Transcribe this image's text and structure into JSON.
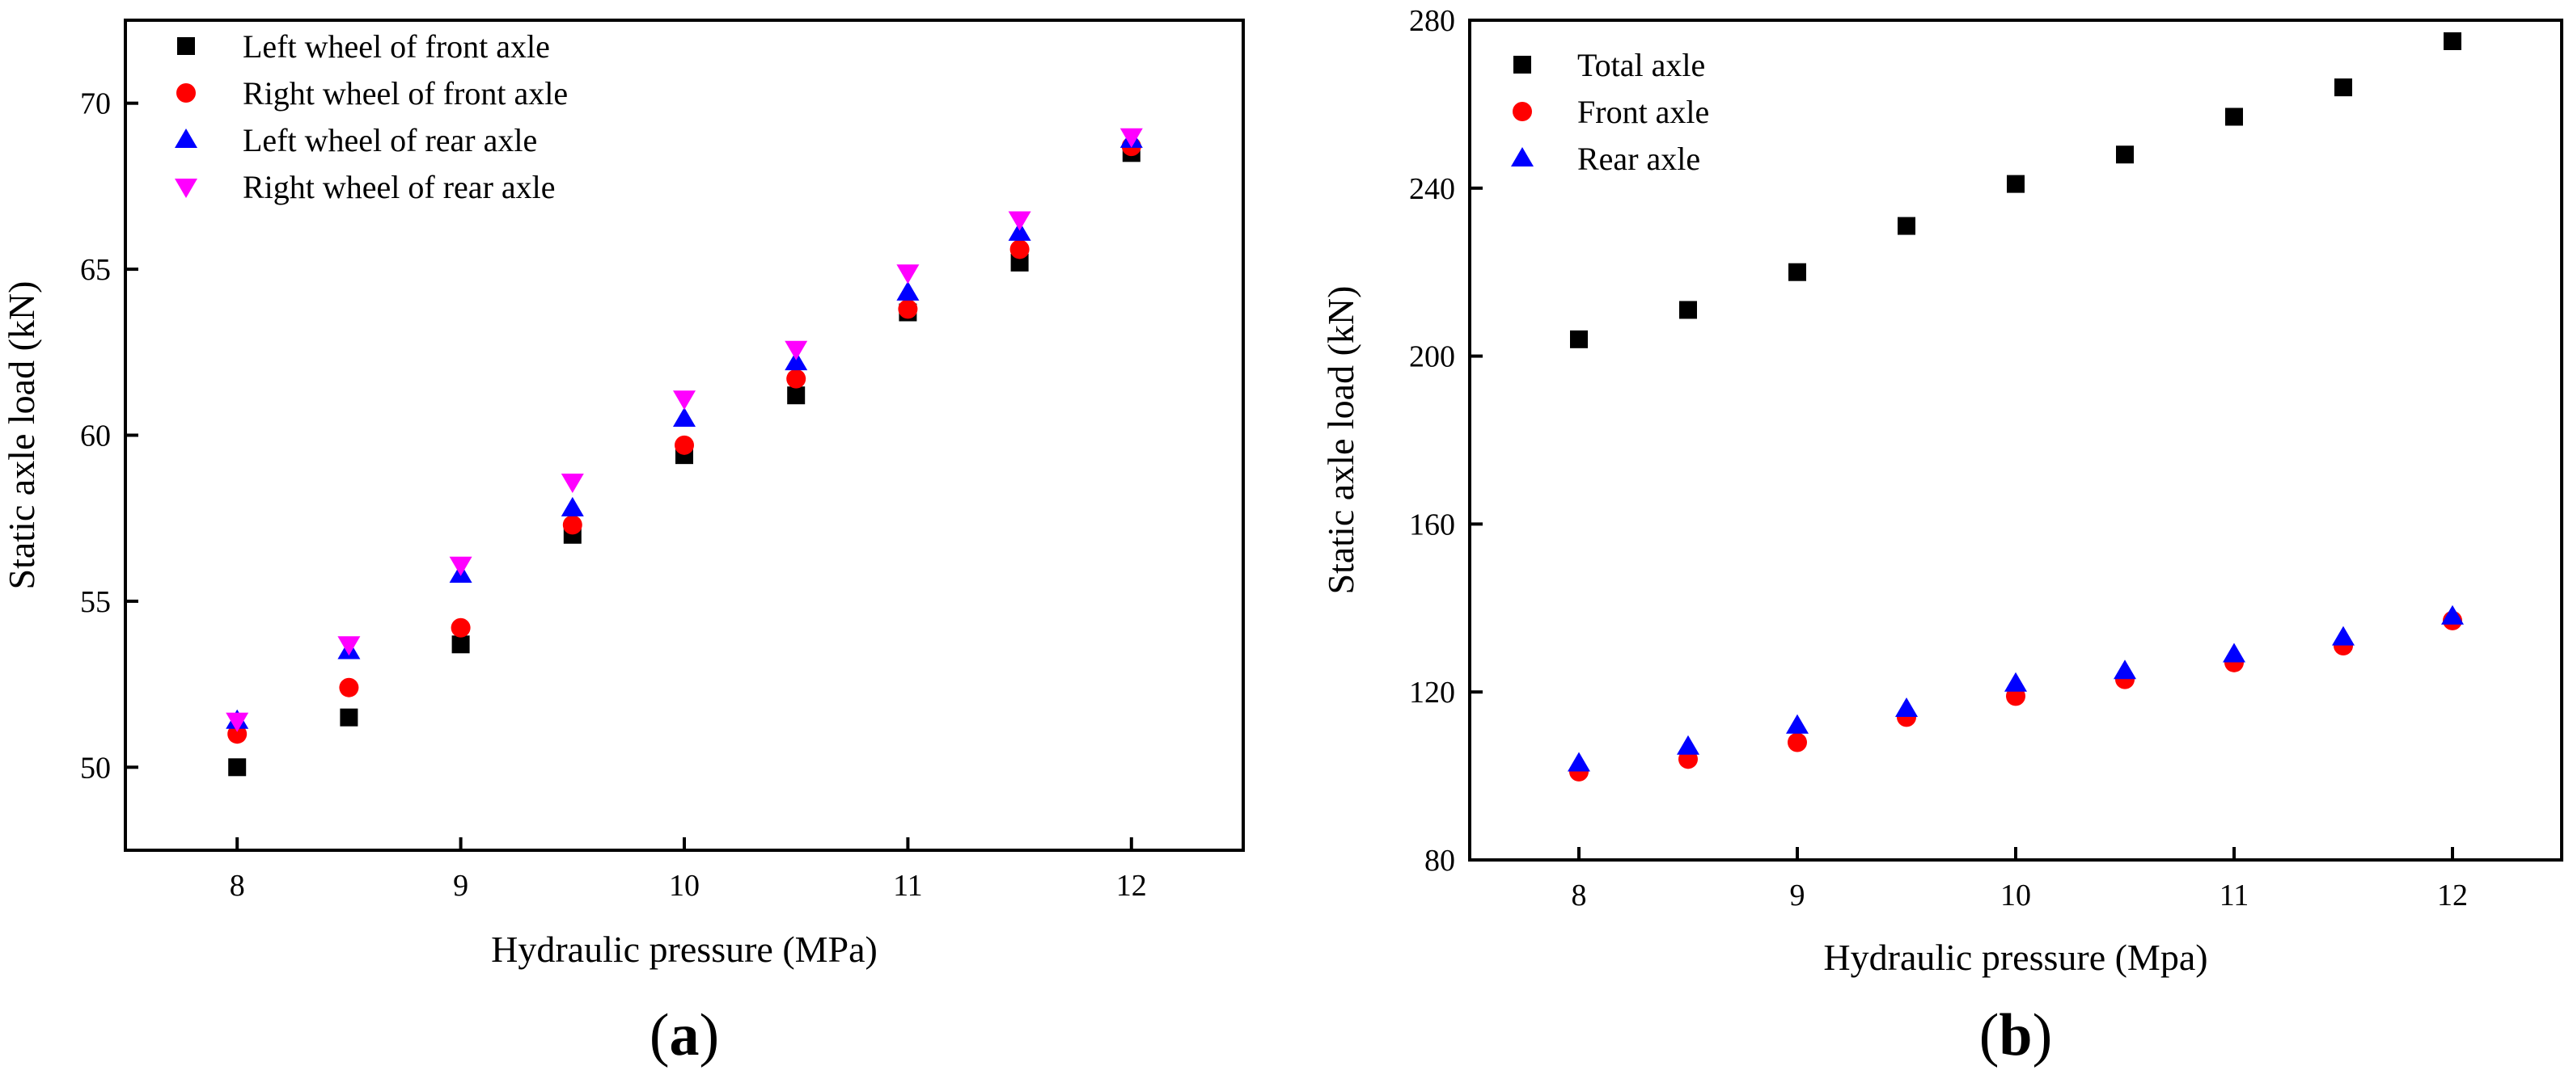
{
  "chart_data": [
    {
      "type": "scatter",
      "panel_label": "a",
      "xlabel": "Hydraulic pressure (MPa)",
      "ylabel": "Static axle load (kN)",
      "xlim": [
        7.5,
        12.5
      ],
      "ylim": [
        47.5,
        72.5
      ],
      "xticks": [
        8,
        9,
        10,
        11,
        12
      ],
      "yticks": [
        50,
        55,
        60,
        65,
        70
      ],
      "x": [
        8,
        8.5,
        9,
        9.5,
        10,
        10.5,
        11,
        11.5,
        12
      ],
      "legend_position": "top-left",
      "series": [
        {
          "name": "Left wheel of front axle",
          "marker": "square",
          "color": "#000000",
          "values": [
            50.0,
            51.5,
            53.7,
            57.0,
            59.4,
            61.2,
            63.7,
            65.2,
            68.5
          ]
        },
        {
          "name": "Right wheel of front axle",
          "marker": "circle",
          "color": "#ff0000",
          "values": [
            51.0,
            52.4,
            54.2,
            57.3,
            59.7,
            61.7,
            63.8,
            65.6,
            68.7
          ]
        },
        {
          "name": "Left wheel of rear axle",
          "marker": "triangle-up",
          "color": "#0000ff",
          "values": [
            51.4,
            53.5,
            55.8,
            57.8,
            60.5,
            62.2,
            64.3,
            66.1,
            68.9
          ]
        },
        {
          "name": "Right wheel of rear axle",
          "marker": "triangle-down",
          "color": "#ff00ff",
          "values": [
            51.4,
            53.7,
            56.1,
            58.6,
            61.1,
            62.6,
            64.9,
            66.5,
            69.0
          ]
        }
      ]
    },
    {
      "type": "scatter",
      "panel_label": "b",
      "xlabel": "Hydraulic pressure (Mpa)",
      "ylabel": "Static axle load (kN)",
      "xlim": [
        7.5,
        12.5
      ],
      "ylim": [
        80,
        280
      ],
      "xticks": [
        8,
        9,
        10,
        11,
        12
      ],
      "yticks": [
        80,
        120,
        160,
        200,
        240,
        280
      ],
      "x": [
        8,
        8.5,
        9,
        9.5,
        10,
        10.5,
        11,
        11.5,
        12
      ],
      "legend_position": "top-left",
      "series": [
        {
          "name": "Total axle",
          "marker": "square",
          "color": "#000000",
          "values": [
            204,
            211,
            220,
            231,
            241,
            248,
            257,
            264,
            275
          ]
        },
        {
          "name": "Front axle",
          "marker": "circle",
          "color": "#ff0000",
          "values": [
            101,
            104,
            108,
            114,
            119,
            123,
            127,
            131,
            137
          ]
        },
        {
          "name": "Rear axle",
          "marker": "triangle-up",
          "color": "#0000ff",
          "values": [
            103,
            107,
            112,
            116,
            122,
            125,
            129,
            133,
            138
          ]
        }
      ]
    }
  ]
}
